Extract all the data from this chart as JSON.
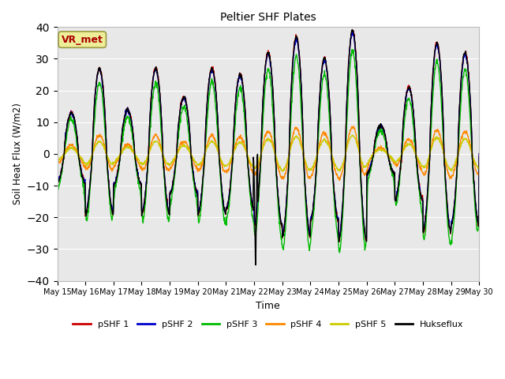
{
  "title": "Peltier SHF Plates",
  "xlabel": "Time",
  "ylabel": "Soil Heat Flux (W/m2)",
  "ylim": [
    -40,
    40
  ],
  "yticks": [
    -40,
    -30,
    -20,
    -10,
    0,
    10,
    20,
    30,
    40
  ],
  "legend_labels": [
    "pSHF 1",
    "pSHF 2",
    "pSHF 3",
    "pSHF 4",
    "pSHF 5",
    "Hukseflux"
  ],
  "legend_colors": [
    "#cc0000",
    "#0000cc",
    "#00bb00",
    "#ff8800",
    "#cccc00",
    "#000000"
  ],
  "annotation_text": "VR_met",
  "annotation_bg": "#eeee99",
  "annotation_border": "#999944",
  "bg_color": "#e8e8e8",
  "x_start": 15,
  "x_end": 30,
  "xtick_labels": [
    "May 15",
    "May 16",
    "May 17",
    "May 18",
    "May 19",
    "May 20",
    "May 21",
    "May 22",
    "May 23",
    "May 24",
    "May 25",
    "May 26",
    "May 27",
    "May 28",
    "May 29",
    "May 30"
  ],
  "xtick_positions": [
    15,
    16,
    17,
    18,
    19,
    20,
    21,
    22,
    23,
    24,
    25,
    26,
    27,
    28,
    29,
    30
  ]
}
